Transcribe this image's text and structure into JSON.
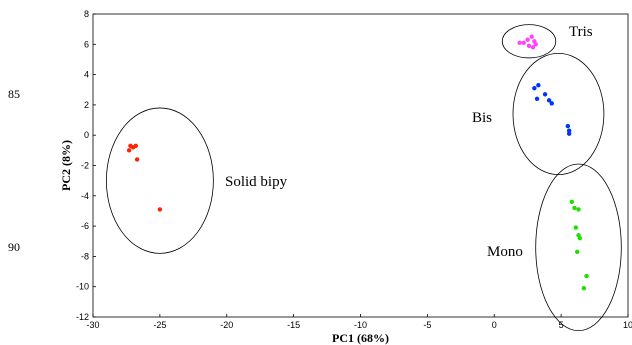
{
  "line_numbers": [
    "85",
    "90"
  ],
  "chart_data": {
    "type": "scatter",
    "xlabel": "PC1 (68%)",
    "ylabel": "PC2 (8%)",
    "xlim": [
      -30,
      10
    ],
    "ylim": [
      -12,
      8
    ],
    "xticks": [
      -30,
      -25,
      -20,
      -15,
      -10,
      -5,
      0,
      5,
      10
    ],
    "yticks": [
      -12,
      -10,
      -8,
      -6,
      -4,
      -2,
      0,
      2,
      4,
      6,
      8
    ],
    "grid": false,
    "series": [
      {
        "name": "Tris",
        "color": "#ff44ff",
        "points": [
          [
            1.9,
            6.1
          ],
          [
            2.2,
            6.1
          ],
          [
            2.5,
            6.3
          ],
          [
            2.6,
            5.9
          ],
          [
            2.8,
            6.5
          ],
          [
            3.0,
            6.2
          ],
          [
            3.1,
            6.0
          ],
          [
            2.9,
            5.8
          ]
        ],
        "ellipse": {
          "cx": 2.6,
          "cy": 6.2,
          "rx": 2.0,
          "ry": 1.1
        }
      },
      {
        "name": "Bis",
        "color": "#0033ff",
        "points": [
          [
            3.0,
            3.1
          ],
          [
            3.3,
            3.3
          ],
          [
            3.2,
            2.4
          ],
          [
            3.8,
            2.7
          ],
          [
            4.1,
            2.3
          ],
          [
            4.3,
            2.1
          ],
          [
            5.5,
            0.6
          ],
          [
            5.6,
            0.3
          ],
          [
            5.6,
            0.1
          ]
        ],
        "ellipse": {
          "cx": 4.8,
          "cy": 1.4,
          "rx": 3.4,
          "ry": 4.0
        }
      },
      {
        "name": "Solid bipy",
        "color": "#ff2200",
        "points": [
          [
            -27.2,
            -0.7
          ],
          [
            -27.0,
            -0.8
          ],
          [
            -27.3,
            -1.0
          ],
          [
            -26.8,
            -0.7
          ],
          [
            -26.7,
            -1.6
          ],
          [
            -25.0,
            -4.9
          ]
        ],
        "ellipse": {
          "cx": -25.0,
          "cy": -3.0,
          "rx": 4.0,
          "ry": 4.8
        }
      },
      {
        "name": "Mono",
        "color": "#22dd00",
        "points": [
          [
            5.8,
            -4.4
          ],
          [
            6.0,
            -4.8
          ],
          [
            6.3,
            -4.9
          ],
          [
            6.1,
            -6.1
          ],
          [
            6.3,
            -6.6
          ],
          [
            6.4,
            -6.8
          ],
          [
            6.2,
            -7.7
          ],
          [
            6.9,
            -9.3
          ],
          [
            6.7,
            -10.1
          ]
        ],
        "ellipse": {
          "cx": 6.3,
          "cy": -7.4,
          "rx": 3.2,
          "ry": 5.5
        }
      }
    ]
  }
}
